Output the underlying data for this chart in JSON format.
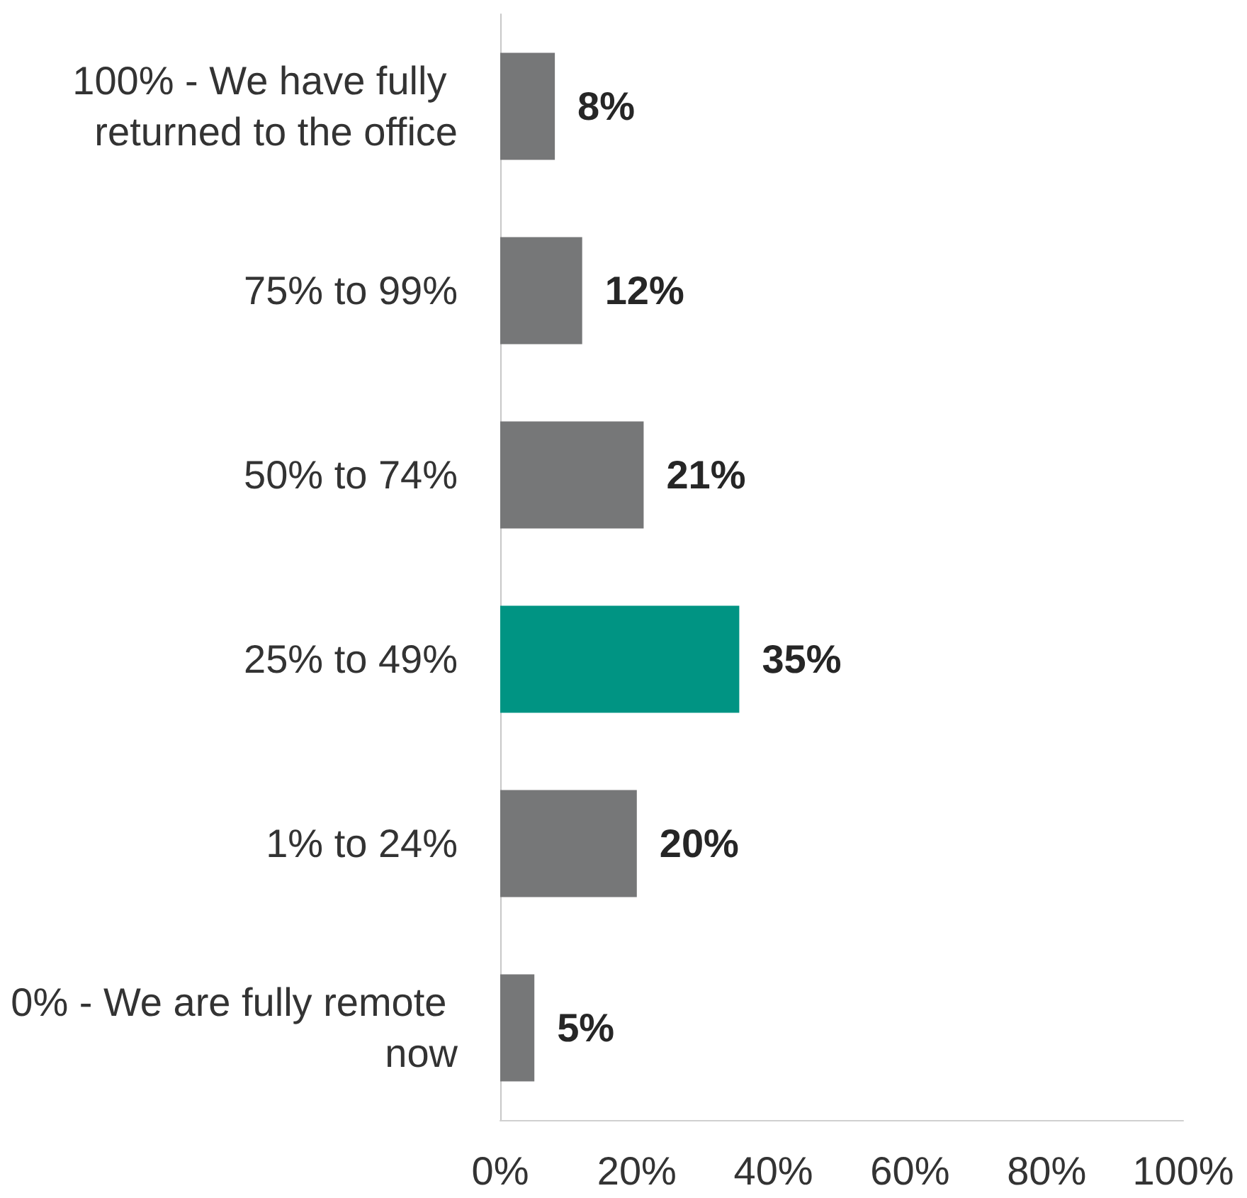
{
  "chart_data": {
    "type": "bar",
    "orientation": "horizontal",
    "categories": [
      "100% - We have fully returned to the office",
      "75% to 99%",
      "50% to 74%",
      "25% to 49%",
      "1% to 24%",
      "0% - We are fully remote now"
    ],
    "values": [
      8,
      12,
      21,
      35,
      20,
      5
    ],
    "colors": [
      "#767778",
      "#767778",
      "#767778",
      "#009483",
      "#767778",
      "#767778"
    ],
    "value_labels": [
      "8%",
      "12%",
      "21%",
      "35%",
      "20%",
      "5%"
    ],
    "xlim": [
      0,
      100
    ],
    "xticks": [
      {
        "value": 0,
        "label": "0%"
      },
      {
        "value": 20,
        "label": "20%"
      },
      {
        "value": 40,
        "label": "40%"
      },
      {
        "value": 60,
        "label": "60%"
      },
      {
        "value": 80,
        "label": "80%"
      },
      {
        "value": 100,
        "label": "100%"
      }
    ],
    "grid": false
  }
}
